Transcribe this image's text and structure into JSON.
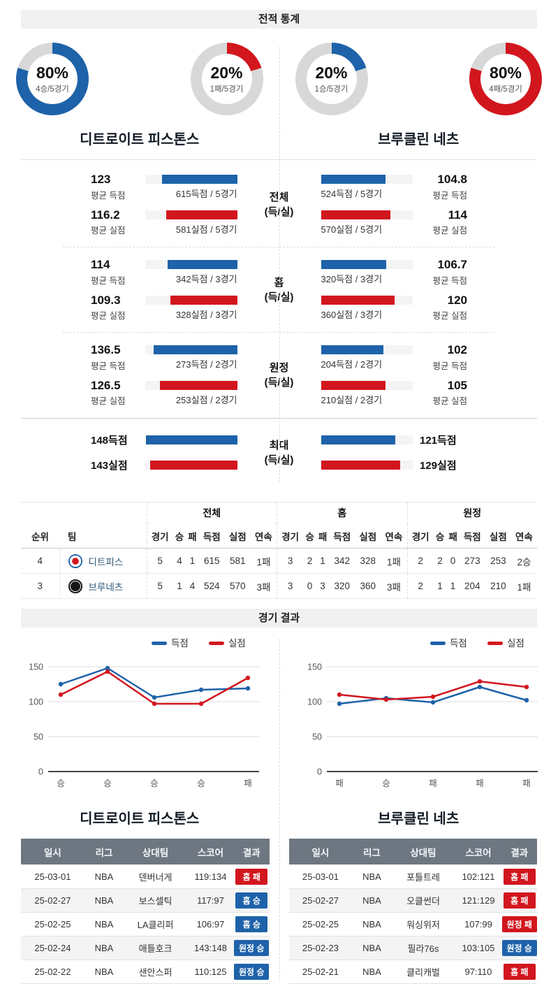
{
  "colors": {
    "blue": "#1e62a9",
    "red": "#d2161e",
    "donut_track": "#d8d8d8",
    "bar_track": "#f4f4f4"
  },
  "stats_header": {
    "title": "전적 통계"
  },
  "results_header": {
    "title": "경기 결과"
  },
  "teams": {
    "left": {
      "name": "디트로이트 피스톤스",
      "donuts": [
        {
          "percent": 80,
          "text": "80%",
          "sub": "4승/5경기",
          "color": "#1e62a9",
          "kind": "win-rate"
        },
        {
          "percent": 20,
          "text": "20%",
          "sub": "1패/5경기",
          "color": "#d2161e",
          "kind": "loss-rate"
        }
      ]
    },
    "right": {
      "name": "브루클린 네츠",
      "donuts": [
        {
          "percent": 20,
          "text": "20%",
          "sub": "1승/5경기",
          "color": "#1e62a9",
          "kind": "win-rate"
        },
        {
          "percent": 80,
          "text": "80%",
          "sub": "4패/5경기",
          "color": "#d2161e",
          "kind": "loss-rate"
        }
      ]
    }
  },
  "stat_sections": [
    {
      "label": [
        "전체",
        "(득/실)"
      ],
      "left": [
        {
          "value": "123",
          "caption": "평균 득점",
          "bar_label": "615득점 / 5경기",
          "pct": 82,
          "type": "scored"
        },
        {
          "value": "116.2",
          "caption": "평균 실점",
          "bar_label": "581실점 / 5경기",
          "pct": 77,
          "type": "conceded"
        }
      ],
      "right": [
        {
          "value": "104.8",
          "caption": "평균 득점",
          "bar_label": "524득점 / 5경기",
          "pct": 70,
          "type": "scored"
        },
        {
          "value": "114",
          "caption": "평균 실점",
          "bar_label": "570실점 / 5경기",
          "pct": 76,
          "type": "conceded"
        }
      ]
    },
    {
      "label": [
        "홈",
        "(득/실)"
      ],
      "left": [
        {
          "value": "114",
          "caption": "평균 득점",
          "bar_label": "342득점 / 3경기",
          "pct": 76,
          "type": "scored"
        },
        {
          "value": "109.3",
          "caption": "평균 실점",
          "bar_label": "328실점 / 3경기",
          "pct": 73,
          "type": "conceded"
        }
      ],
      "right": [
        {
          "value": "106.7",
          "caption": "평균 득점",
          "bar_label": "320득점 / 3경기",
          "pct": 71,
          "type": "scored"
        },
        {
          "value": "120",
          "caption": "평균 실점",
          "bar_label": "360실점 / 3경기",
          "pct": 80,
          "type": "conceded"
        }
      ]
    },
    {
      "label": [
        "원정",
        "(득/실)"
      ],
      "left": [
        {
          "value": "136.5",
          "caption": "평균 득점",
          "bar_label": "273득점 / 2경기",
          "pct": 91,
          "type": "scored"
        },
        {
          "value": "126.5",
          "caption": "평균 실점",
          "bar_label": "253실점 / 2경기",
          "pct": 84,
          "type": "conceded"
        }
      ],
      "right": [
        {
          "value": "102",
          "caption": "평균 득점",
          "bar_label": "204득점 / 2경기",
          "pct": 68,
          "type": "scored"
        },
        {
          "value": "105",
          "caption": "평균 실점",
          "bar_label": "210실점 / 2경기",
          "pct": 70,
          "type": "conceded"
        }
      ]
    }
  ],
  "max_section": {
    "label": [
      "최대",
      "(득/실)"
    ],
    "left": [
      {
        "text": "148득점",
        "pct": 99,
        "type": "scored"
      },
      {
        "text": "143실점",
        "pct": 95,
        "type": "conceded"
      }
    ],
    "right": [
      {
        "text": "121득점",
        "pct": 81,
        "type": "scored"
      },
      {
        "text": "129실점",
        "pct": 86,
        "type": "conceded"
      }
    ]
  },
  "standings": {
    "base_headers": [
      "순위",
      "팀"
    ],
    "group_headers": [
      "전체",
      "홈",
      "원정"
    ],
    "stat_headers": [
      "경기",
      "승",
      "패",
      "득점",
      "실점",
      "연속"
    ],
    "rows": [
      {
        "rank": "4",
        "team": "디트피스",
        "logo": "pistons",
        "groups": [
          [
            "5",
            "4",
            "1",
            "615",
            "581",
            "1패"
          ],
          [
            "3",
            "2",
            "1",
            "342",
            "328",
            "1패"
          ],
          [
            "2",
            "2",
            "0",
            "273",
            "253",
            "2승"
          ]
        ]
      },
      {
        "rank": "3",
        "team": "브루네츠",
        "logo": "nets",
        "groups": [
          [
            "5",
            "1",
            "4",
            "524",
            "570",
            "3패"
          ],
          [
            "3",
            "0",
            "3",
            "320",
            "360",
            "3패"
          ],
          [
            "2",
            "1",
            "1",
            "204",
            "210",
            "1패"
          ]
        ]
      }
    ]
  },
  "chart_data": [
    {
      "type": "line",
      "team": "디트로이트 피스톤스",
      "x_labels": [
        "승",
        "승",
        "승",
        "승",
        "패"
      ],
      "yticks": [
        0,
        50,
        100,
        150
      ],
      "ylim": [
        0,
        160
      ],
      "grid": true,
      "legend_position": "top-right",
      "series": [
        {
          "name": "득점",
          "color": "#1e62a9",
          "values": [
            125,
            148,
            106,
            117,
            119
          ]
        },
        {
          "name": "실점",
          "color": "#d2161e",
          "values": [
            110,
            143,
            97,
            97,
            134
          ]
        }
      ]
    },
    {
      "type": "line",
      "team": "브루클린 네츠",
      "x_labels": [
        "패",
        "승",
        "패",
        "패",
        "패"
      ],
      "yticks": [
        0,
        50,
        100,
        150
      ],
      "ylim": [
        0,
        160
      ],
      "grid": true,
      "legend_position": "top-right",
      "series": [
        {
          "name": "득점",
          "color": "#1e62a9",
          "values": [
            97,
            105,
            99,
            121,
            102
          ]
        },
        {
          "name": "실점",
          "color": "#d2161e",
          "values": [
            110,
            103,
            107,
            129,
            121
          ]
        }
      ]
    }
  ],
  "games": {
    "headers": [
      "일시",
      "리그",
      "상대팀",
      "스코어",
      "결과"
    ],
    "left": {
      "title": "디트로이트 피스톤스",
      "rows": [
        {
          "date": "25-03-01",
          "league": "NBA",
          "opponent": "덴버너게",
          "score": "119:134",
          "result": "홈 패",
          "result_type": "loss"
        },
        {
          "date": "25-02-27",
          "league": "NBA",
          "opponent": "보스셀틱",
          "score": "117:97",
          "result": "홈 승",
          "result_type": "win"
        },
        {
          "date": "25-02-25",
          "league": "NBA",
          "opponent": "LA클리퍼",
          "score": "106:97",
          "result": "홈 승",
          "result_type": "win"
        },
        {
          "date": "25-02-24",
          "league": "NBA",
          "opponent": "애틀호크",
          "score": "143:148",
          "result": "원정 승",
          "result_type": "win"
        },
        {
          "date": "25-02-22",
          "league": "NBA",
          "opponent": "샌안스퍼",
          "score": "110:125",
          "result": "원정 승",
          "result_type": "win"
        }
      ]
    },
    "right": {
      "title": "브루클린 네츠",
      "rows": [
        {
          "date": "25-03-01",
          "league": "NBA",
          "opponent": "포틀트레",
          "score": "102:121",
          "result": "홈 패",
          "result_type": "loss"
        },
        {
          "date": "25-02-27",
          "league": "NBA",
          "opponent": "오클썬더",
          "score": "121:129",
          "result": "홈 패",
          "result_type": "loss"
        },
        {
          "date": "25-02-25",
          "league": "NBA",
          "opponent": "워싱위저",
          "score": "107:99",
          "result": "원정 패",
          "result_type": "loss"
        },
        {
          "date": "25-02-23",
          "league": "NBA",
          "opponent": "필라76s",
          "score": "103:105",
          "result": "원정 승",
          "result_type": "win"
        },
        {
          "date": "25-02-21",
          "league": "NBA",
          "opponent": "클리캐벌",
          "score": "97:110",
          "result": "홈 패",
          "result_type": "loss"
        }
      ]
    }
  }
}
